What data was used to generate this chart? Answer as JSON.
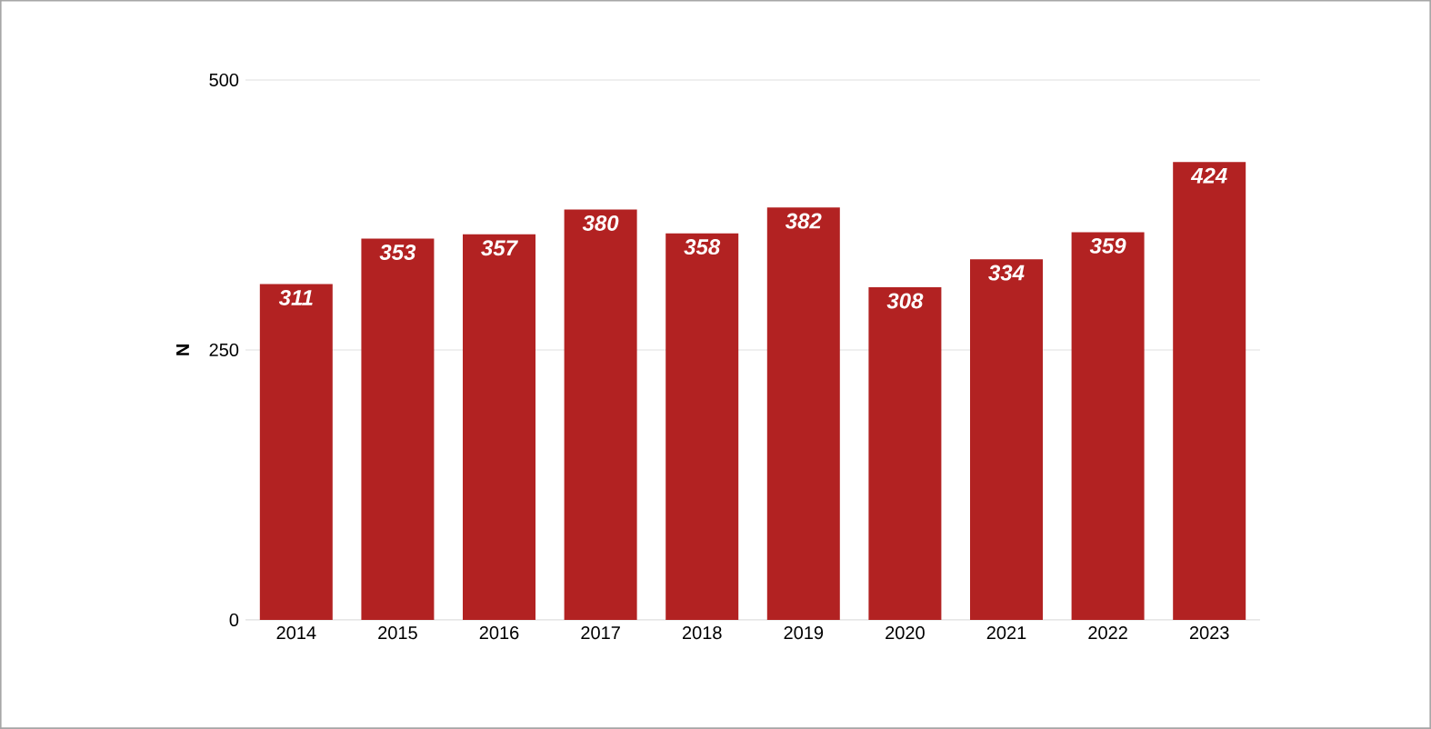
{
  "chart_data": {
    "type": "bar",
    "ylabel": "N",
    "categories": [
      "2014",
      "2015",
      "2016",
      "2017",
      "2018",
      "2019",
      "2020",
      "2021",
      "2022",
      "2023"
    ],
    "values": [
      311,
      353,
      357,
      380,
      358,
      382,
      308,
      334,
      359,
      424
    ],
    "color": "#b22222",
    "ylim": [
      0,
      500
    ],
    "yticks": [
      0,
      250,
      500
    ],
    "grid": "y",
    "data_labels": true
  }
}
